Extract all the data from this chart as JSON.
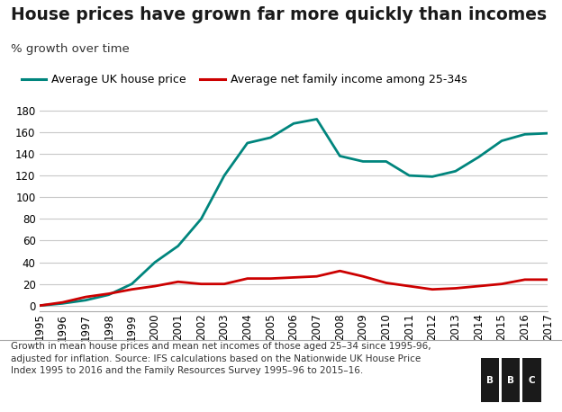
{
  "title": "House prices have grown far more quickly than incomes",
  "ylabel": "% growth over time",
  "footnote": "Growth in mean house prices and mean net incomes of those aged 25–34 since 1995-96,\nadjusted for inflation. Source: IFS calculations based on the Nationwide UK House Price\nIndex 1995 to 2016 and the Family Resources Survey 1995–96 to 2015–16.",
  "years": [
    1995,
    1996,
    1997,
    1998,
    1999,
    2000,
    2001,
    2002,
    2003,
    2004,
    2005,
    2006,
    2007,
    2008,
    2009,
    2010,
    2011,
    2012,
    2013,
    2014,
    2015,
    2016,
    2017
  ],
  "house_price": [
    0,
    2,
    5,
    10,
    20,
    40,
    55,
    80,
    120,
    150,
    155,
    168,
    172,
    138,
    133,
    133,
    120,
    119,
    124,
    137,
    152,
    158,
    159
  ],
  "income": [
    0,
    3,
    8,
    11,
    15,
    18,
    22,
    20,
    20,
    25,
    25,
    26,
    27,
    32,
    27,
    21,
    18,
    15,
    16,
    18,
    20,
    24,
    24
  ],
  "house_color": "#00857d",
  "income_color": "#cc0000",
  "background_color": "#ffffff",
  "grid_color": "#c8c8c8",
  "ylim": [
    -5,
    185
  ],
  "yticks": [
    0,
    20,
    40,
    60,
    80,
    100,
    120,
    140,
    160,
    180
  ],
  "legend_house": "Average UK house price",
  "legend_income": "Average net family income among 25-34s",
  "title_fontsize": 13.5,
  "sublabel_fontsize": 9.5,
  "legend_fontsize": 9,
  "tick_fontsize": 8.5,
  "footnote_fontsize": 7.5
}
